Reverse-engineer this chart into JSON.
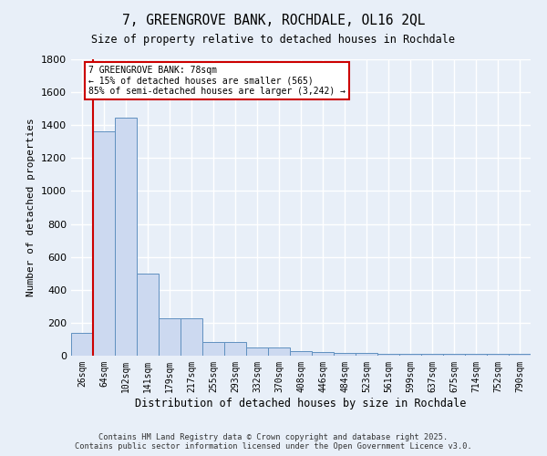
{
  "title": "7, GREENGROVE BANK, ROCHDALE, OL16 2QL",
  "subtitle": "Size of property relative to detached houses in Rochdale",
  "xlabel": "Distribution of detached houses by size in Rochdale",
  "ylabel": "Number of detached properties",
  "categories": [
    "26sqm",
    "64sqm",
    "102sqm",
    "141sqm",
    "179sqm",
    "217sqm",
    "255sqm",
    "293sqm",
    "332sqm",
    "370sqm",
    "408sqm",
    "446sqm",
    "484sqm",
    "523sqm",
    "561sqm",
    "599sqm",
    "637sqm",
    "675sqm",
    "714sqm",
    "752sqm",
    "790sqm"
  ],
  "values": [
    140,
    1365,
    1445,
    500,
    228,
    228,
    85,
    85,
    50,
    50,
    30,
    20,
    15,
    15,
    10,
    10,
    10,
    10,
    10,
    10,
    10
  ],
  "bar_color": "#ccd9f0",
  "bar_edge_color": "#6090c0",
  "vline_x_index": 1,
  "vline_color": "#cc0000",
  "annotation_text": "7 GREENGROVE BANK: 78sqm\n← 15% of detached houses are smaller (565)\n85% of semi-detached houses are larger (3,242) →",
  "annotation_box_color": "#ffffff",
  "annotation_box_edge": "#cc0000",
  "ylim": [
    0,
    1800
  ],
  "yticks": [
    0,
    200,
    400,
    600,
    800,
    1000,
    1200,
    1400,
    1600,
    1800
  ],
  "background_color": "#e8eff8",
  "grid_color": "#ffffff",
  "footer_line1": "Contains HM Land Registry data © Crown copyright and database right 2025.",
  "footer_line2": "Contains public sector information licensed under the Open Government Licence v3.0."
}
